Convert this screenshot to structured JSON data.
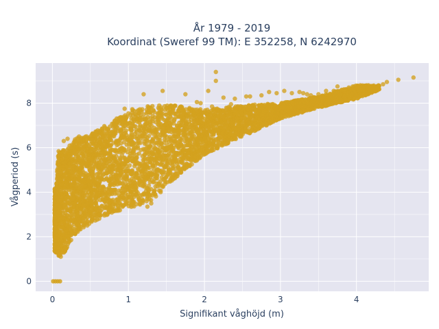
{
  "chart_data": {
    "type": "scatter",
    "title_line1": "År 1979 - 2019",
    "title_line2": "Koordinat (Sweref 99 TM): E 352258, N 6242970",
    "xlabel": "Signifikant våghöjd (m)",
    "ylabel": "Vågperiod (s)",
    "xlim": [
      -0.22,
      4.95
    ],
    "ylim": [
      -0.45,
      9.8
    ],
    "x_ticks": [
      0,
      1,
      2,
      3,
      4
    ],
    "x_tick_labels": [
      "0",
      "1",
      "2",
      "3",
      "4"
    ],
    "y_ticks": [
      0,
      2,
      4,
      6,
      8
    ],
    "y_tick_labels": [
      "0",
      "2",
      "4",
      "6",
      "8"
    ],
    "grid": true,
    "marker_color": "#d4a21f",
    "plot_bg": "#e5e5f0",
    "series": [
      {
        "upper_envelope": [
          [
            0.05,
            4.2
          ],
          [
            0.08,
            5.9
          ],
          [
            0.2,
            6.0
          ],
          [
            0.3,
            6.4
          ],
          [
            0.5,
            6.6
          ],
          [
            0.8,
            7.2
          ],
          [
            1.0,
            7.7
          ],
          [
            1.3,
            7.9
          ],
          [
            1.6,
            7.9
          ],
          [
            2.0,
            7.7
          ],
          [
            2.5,
            7.9
          ],
          [
            3.0,
            8.0
          ],
          [
            3.5,
            8.3
          ],
          [
            4.0,
            8.8
          ]
        ],
        "lower_envelope": [
          [
            0.05,
            1.3
          ],
          [
            0.1,
            1.05
          ],
          [
            0.2,
            1.5
          ],
          [
            0.3,
            2.1
          ],
          [
            0.5,
            2.6
          ],
          [
            0.8,
            3.1
          ],
          [
            1.0,
            3.3
          ],
          [
            1.3,
            3.5
          ],
          [
            1.5,
            4.3
          ],
          [
            2.0,
            5.7
          ],
          [
            2.5,
            6.5
          ],
          [
            3.0,
            7.3
          ],
          [
            3.5,
            7.8
          ],
          [
            4.0,
            8.2
          ],
          [
            4.3,
            8.6
          ]
        ],
        "zero_cluster": [
          [
            0.01,
            0.0
          ],
          [
            0.04,
            0.0
          ],
          [
            0.07,
            0.0
          ],
          [
            0.1,
            0.0
          ]
        ],
        "outliers": [
          [
            2.15,
            9.4
          ],
          [
            2.15,
            9.0
          ],
          [
            2.05,
            8.55
          ],
          [
            1.75,
            8.4
          ],
          [
            1.95,
            8.0
          ],
          [
            2.1,
            7.85
          ],
          [
            2.25,
            8.25
          ],
          [
            2.4,
            8.2
          ],
          [
            2.6,
            8.3
          ],
          [
            2.85,
            8.5
          ],
          [
            3.05,
            8.55
          ],
          [
            3.25,
            8.5
          ],
          [
            3.35,
            8.4
          ],
          [
            3.5,
            8.4
          ],
          [
            3.6,
            8.55
          ],
          [
            3.75,
            8.75
          ],
          [
            3.9,
            8.7
          ],
          [
            4.05,
            8.8
          ],
          [
            4.15,
            8.7
          ],
          [
            4.4,
            8.95
          ],
          [
            4.35,
            8.85
          ],
          [
            4.55,
            9.05
          ],
          [
            4.75,
            9.15
          ],
          [
            1.45,
            8.55
          ],
          [
            1.2,
            8.4
          ],
          [
            0.95,
            7.75
          ],
          [
            2.3,
            6.35
          ],
          [
            2.45,
            6.6
          ],
          [
            1.3,
            3.5
          ],
          [
            1.25,
            3.35
          ],
          [
            1.05,
            4.85
          ],
          [
            0.6,
            6.1
          ],
          [
            0.35,
            6.5
          ],
          [
            0.45,
            6.35
          ],
          [
            0.7,
            6.25
          ],
          [
            0.2,
            6.4
          ],
          [
            0.15,
            6.3
          ],
          [
            0.55,
            6.5
          ],
          [
            3.3,
            8.45
          ],
          [
            3.4,
            8.35
          ],
          [
            3.7,
            8.55
          ],
          [
            4.0,
            8.65
          ],
          [
            2.55,
            8.3
          ],
          [
            2.75,
            8.35
          ],
          [
            2.95,
            8.45
          ],
          [
            3.15,
            8.45
          ],
          [
            1.9,
            8.05
          ],
          [
            2.35,
            7.95
          ],
          [
            4.2,
            8.75
          ]
        ]
      }
    ]
  }
}
